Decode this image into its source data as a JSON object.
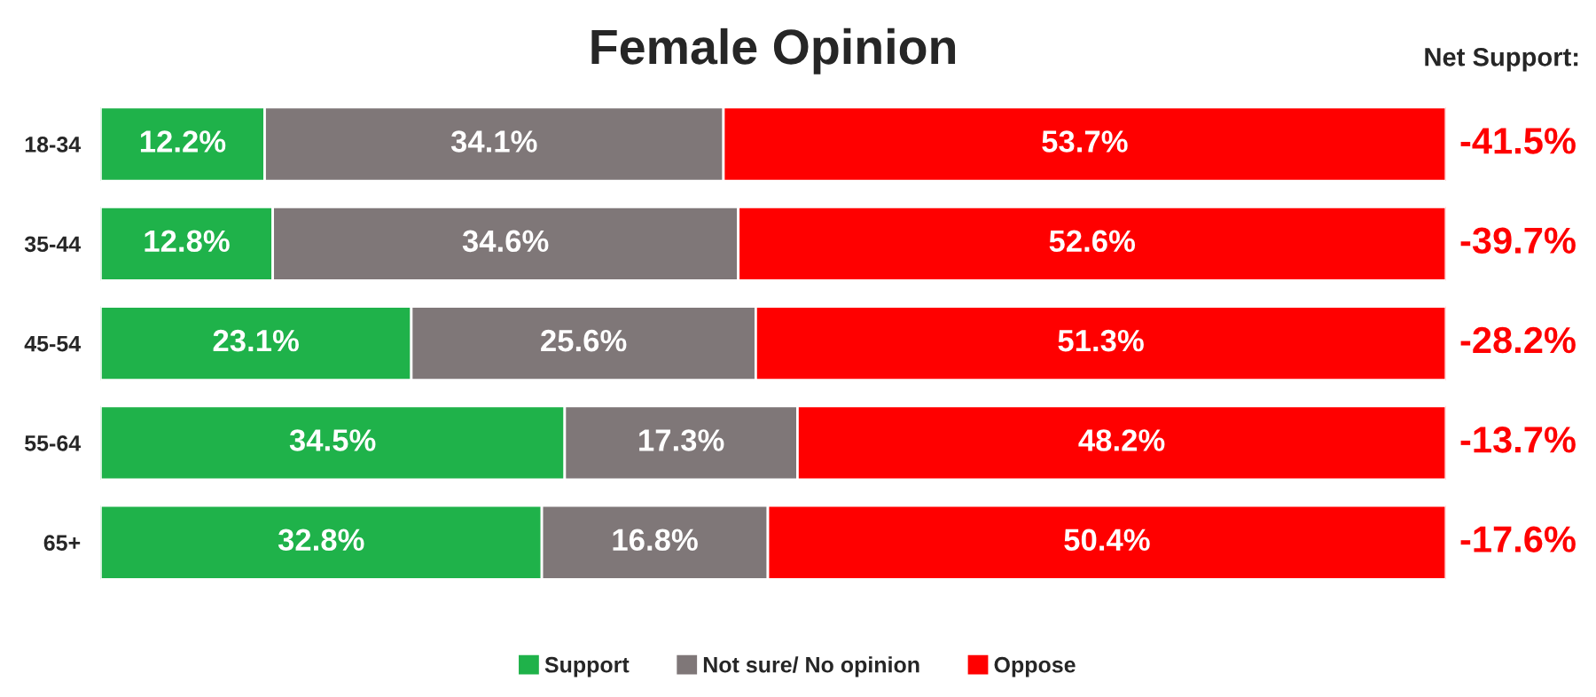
{
  "chart_data": {
    "type": "bar",
    "orientation": "horizontal",
    "stacked": true,
    "title": "Female Opinion",
    "categories": [
      "18-34",
      "35-44",
      "45-54",
      "55-64",
      "65+"
    ],
    "series": [
      {
        "name": "Support",
        "color": "#1fb24a",
        "values": [
          12.2,
          12.8,
          23.1,
          34.5,
          32.8
        ],
        "value_labels": [
          "12.2%",
          "12.8%",
          "23.1%",
          "34.5%",
          "32.8%"
        ]
      },
      {
        "name": "Not sure/ No opinion",
        "color": "#7f7778",
        "values": [
          34.1,
          34.6,
          25.6,
          17.3,
          16.8
        ],
        "value_labels": [
          "34.1%",
          "34.6%",
          "25.6%",
          "17.3%",
          "16.8%"
        ]
      },
      {
        "name": "Oppose",
        "color": "#ff0000",
        "values": [
          53.7,
          52.6,
          51.3,
          48.2,
          50.4
        ],
        "value_labels": [
          "53.7%",
          "52.6%",
          "51.3%",
          "48.2%",
          "50.4%"
        ]
      }
    ],
    "annotations": [
      "Net Support:",
      "-41.5%",
      "-39.7%",
      "-28.2%",
      "-13.7%",
      "-17.6%"
    ],
    "legend": "bottom",
    "grid": false
  }
}
